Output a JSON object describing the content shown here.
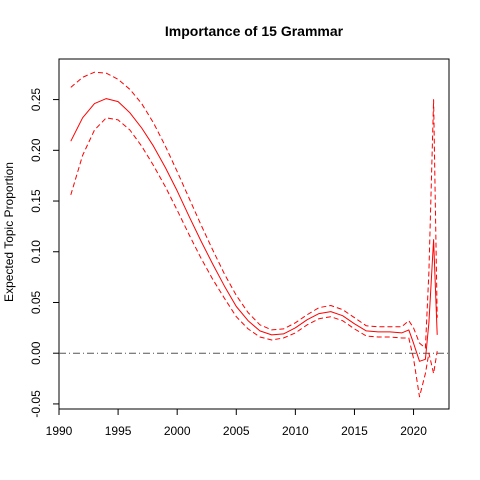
{
  "chart_data": {
    "type": "line",
    "title": "Importance of 15 Grammar",
    "xlabel": "",
    "ylabel": "Expected Topic Proportion",
    "xlim": [
      1990,
      2023
    ],
    "ylim": [
      -0.055,
      0.29
    ],
    "x_ticks": [
      "1990",
      "1995",
      "2000",
      "2005",
      "2010",
      "2015",
      "2020"
    ],
    "y_ticks": [
      "-0.05",
      "0.00",
      "0.05",
      "0.10",
      "0.15",
      "0.20",
      "0.25"
    ],
    "reference_line": {
      "y": 0.0,
      "style": "dash-dot",
      "color": "#555555"
    },
    "grid": false,
    "colors": {
      "series": "#ff0000"
    },
    "x": [
      1991,
      1992,
      1993,
      1994,
      1995,
      1996,
      1997,
      1998,
      1999,
      2000,
      2001,
      2002,
      2003,
      2004,
      2005,
      2006,
      2007,
      2008,
      2009,
      2010,
      2011,
      2012,
      2013,
      2014,
      2015,
      2016,
      2017,
      2018,
      2019,
      2019.6,
      2020,
      2020.5,
      2021,
      2021.3,
      2021.7,
      2022
    ],
    "series": [
      {
        "role": "estimate",
        "style": "solid",
        "values": [
          0.209,
          0.232,
          0.246,
          0.251,
          0.248,
          0.237,
          0.222,
          0.204,
          0.183,
          0.16,
          0.135,
          0.111,
          0.088,
          0.066,
          0.046,
          0.032,
          0.022,
          0.018,
          0.019,
          0.025,
          0.033,
          0.039,
          0.041,
          0.037,
          0.029,
          0.022,
          0.021,
          0.021,
          0.02,
          0.023,
          0.01,
          -0.008,
          -0.006,
          0.03,
          0.112,
          0.018
        ]
      },
      {
        "role": "upper-ci",
        "style": "dashed",
        "values": [
          0.262,
          0.272,
          0.277,
          0.276,
          0.27,
          0.26,
          0.246,
          0.227,
          0.204,
          0.179,
          0.153,
          0.127,
          0.102,
          0.078,
          0.057,
          0.04,
          0.028,
          0.023,
          0.024,
          0.03,
          0.038,
          0.045,
          0.047,
          0.043,
          0.035,
          0.027,
          0.026,
          0.026,
          0.026,
          0.032,
          0.025,
          0.01,
          0.005,
          0.08,
          0.25,
          0.035
        ]
      },
      {
        "role": "lower-ci",
        "style": "dashed",
        "values": [
          0.156,
          0.195,
          0.22,
          0.232,
          0.23,
          0.22,
          0.204,
          0.185,
          0.164,
          0.141,
          0.117,
          0.094,
          0.073,
          0.054,
          0.036,
          0.024,
          0.016,
          0.013,
          0.015,
          0.02,
          0.028,
          0.034,
          0.036,
          0.032,
          0.024,
          0.017,
          0.016,
          0.016,
          0.015,
          0.015,
          -0.005,
          -0.043,
          -0.02,
          0.0,
          -0.02,
          0.002
        ]
      }
    ]
  }
}
